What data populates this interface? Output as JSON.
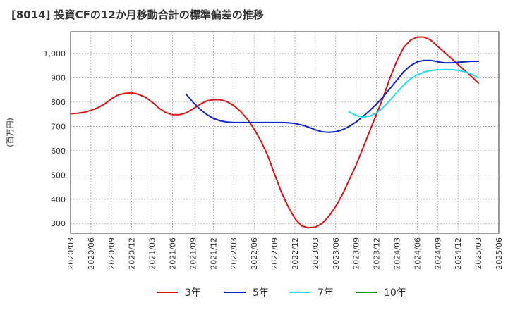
{
  "chart_data": {
    "type": "line",
    "title": "[8014]  投資CFの12か月移動合計の標準偏差の推移",
    "ylabel": "(百万円)",
    "xlabel": "",
    "ylim": [
      260,
      1090
    ],
    "yticks": [
      300,
      400,
      500,
      600,
      700,
      800,
      900,
      1000
    ],
    "ytick_labels": [
      "300",
      "400",
      "500",
      "600",
      "700",
      "800",
      "900",
      "1,000"
    ],
    "xticks": [
      "2020/03",
      "2020/06",
      "2020/09",
      "2020/12",
      "2021/03",
      "2021/06",
      "2021/09",
      "2021/12",
      "2022/03",
      "2022/06",
      "2022/09",
      "2022/12",
      "2023/03",
      "2023/06",
      "2023/09",
      "2023/12",
      "2024/03",
      "2024/06",
      "2024/09",
      "2024/12",
      "2025/03",
      "2025/06"
    ],
    "grid": true,
    "legend_position": "bottom",
    "series": [
      {
        "name": "3年",
        "color": "#dd1111",
        "x": [
          "2020/03",
          "2020/04",
          "2020/05",
          "2020/06",
          "2020/07",
          "2020/08",
          "2020/09",
          "2020/10",
          "2020/11",
          "2020/12",
          "2021/01",
          "2021/02",
          "2021/03",
          "2021/04",
          "2021/05",
          "2021/06",
          "2021/07",
          "2021/08",
          "2021/09",
          "2021/10",
          "2021/11",
          "2021/12",
          "2022/01",
          "2022/02",
          "2022/03",
          "2022/04",
          "2022/05",
          "2022/06",
          "2022/07",
          "2022/08",
          "2022/09",
          "2022/10",
          "2022/11",
          "2022/12",
          "2023/01",
          "2023/02",
          "2023/03",
          "2023/04",
          "2023/05",
          "2023/06",
          "2023/07",
          "2023/08",
          "2023/09",
          "2023/10",
          "2023/11",
          "2023/12",
          "2024/01",
          "2024/02",
          "2024/03",
          "2024/04",
          "2024/05",
          "2024/06",
          "2024/07",
          "2024/08",
          "2024/09",
          "2024/10",
          "2024/11",
          "2024/12",
          "2025/01",
          "2025/02",
          "2025/03"
        ],
        "values": [
          752,
          754,
          758,
          766,
          777,
          792,
          813,
          830,
          836,
          838,
          832,
          820,
          800,
          775,
          757,
          748,
          748,
          756,
          772,
          790,
          805,
          810,
          810,
          802,
          786,
          762,
          730,
          690,
          640,
          580,
          505,
          430,
          370,
          320,
          290,
          282,
          285,
          300,
          330,
          370,
          420,
          480,
          540,
          610,
          680,
          750,
          820,
          900,
          970,
          1025,
          1055,
          1068,
          1068,
          1055,
          1030,
          1005,
          980,
          955,
          930,
          905,
          878
        ]
      },
      {
        "name": "5年",
        "color": "#1122cc",
        "x": [
          "2021/08",
          "2021/09",
          "2021/10",
          "2021/11",
          "2021/12",
          "2022/01",
          "2022/02",
          "2022/03",
          "2022/04",
          "2022/05",
          "2022/06",
          "2022/07",
          "2022/08",
          "2022/09",
          "2022/10",
          "2022/11",
          "2022/12",
          "2023/01",
          "2023/02",
          "2023/03",
          "2023/04",
          "2023/05",
          "2023/06",
          "2023/07",
          "2023/08",
          "2023/09",
          "2023/10",
          "2023/11",
          "2023/12",
          "2024/01",
          "2024/02",
          "2024/03",
          "2024/04",
          "2024/05",
          "2024/06",
          "2024/07",
          "2024/08",
          "2024/09",
          "2024/10",
          "2024/11",
          "2024/12",
          "2025/01",
          "2025/02",
          "2025/03"
        ],
        "values": [
          833,
          800,
          772,
          750,
          733,
          723,
          718,
          716,
          716,
          716,
          716,
          716,
          716,
          716,
          716,
          715,
          712,
          706,
          697,
          686,
          678,
          676,
          678,
          686,
          700,
          718,
          740,
          765,
          792,
          822,
          856,
          890,
          925,
          950,
          966,
          972,
          972,
          966,
          962,
          962,
          964,
          966,
          968,
          968
        ]
      },
      {
        "name": "7年",
        "color": "#22ddee",
        "x": [
          "2023/08",
          "2023/09",
          "2023/10",
          "2023/11",
          "2023/12",
          "2024/01",
          "2024/02",
          "2024/03",
          "2024/04",
          "2024/05",
          "2024/06",
          "2024/07",
          "2024/08",
          "2024/09",
          "2024/10",
          "2024/11",
          "2024/12",
          "2025/01",
          "2025/02",
          "2025/03"
        ],
        "values": [
          760,
          745,
          738,
          742,
          755,
          778,
          808,
          840,
          870,
          895,
          912,
          924,
          930,
          933,
          934,
          934,
          931,
          925,
          915,
          900
        ]
      },
      {
        "name": "10年",
        "color": "#228822",
        "x": [],
        "values": []
      }
    ]
  }
}
